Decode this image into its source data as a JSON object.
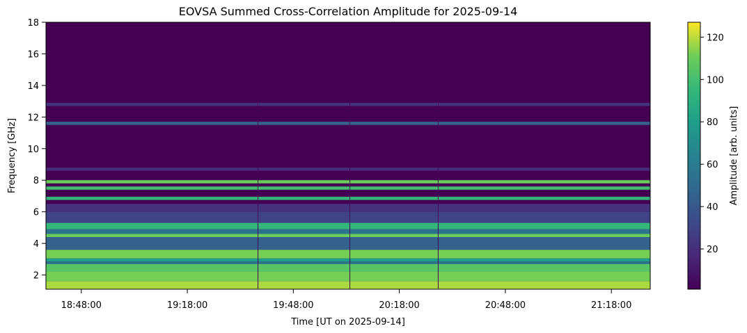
{
  "chart_data": {
    "type": "heatmap",
    "title": "EOVSA Summed Cross-Correlation Amplitude for 2025-09-14",
    "xlabel": "Time [UT on 2025-09-14]",
    "ylabel": "Frequency [GHz]",
    "colorbar_label": "Amplitude [arb. units]",
    "colormap": "viridis",
    "x_range": [
      "18:38:00",
      "21:29:00"
    ],
    "xticks": [
      "18:48:00",
      "19:18:00",
      "19:48:00",
      "20:18:00",
      "20:48:00",
      "21:18:00"
    ],
    "ylim": [
      1.1,
      18.0
    ],
    "yticks": [
      2,
      4,
      6,
      8,
      10,
      12,
      14,
      16,
      18
    ],
    "clim": [
      1,
      127
    ],
    "cbar_ticks": [
      20,
      40,
      60,
      80,
      100,
      120
    ],
    "background_level": 5,
    "bands": [
      {
        "f_low": 1.1,
        "f_high": 1.6,
        "level": 118
      },
      {
        "f_low": 1.6,
        "f_high": 2.2,
        "level": 112
      },
      {
        "f_low": 2.2,
        "f_high": 2.7,
        "level": 105
      },
      {
        "f_low": 2.7,
        "f_high": 2.85,
        "level": 55
      },
      {
        "f_low": 2.85,
        "f_high": 3.05,
        "level": 80
      },
      {
        "f_low": 3.05,
        "f_high": 3.6,
        "level": 112
      },
      {
        "f_low": 3.6,
        "f_high": 4.4,
        "level": 45
      },
      {
        "f_low": 4.4,
        "f_high": 4.6,
        "level": 110
      },
      {
        "f_low": 4.6,
        "f_high": 4.9,
        "level": 55
      },
      {
        "f_low": 4.9,
        "f_high": 5.3,
        "level": 95
      },
      {
        "f_low": 5.3,
        "f_high": 6.0,
        "level": 30
      },
      {
        "f_low": 6.0,
        "f_high": 6.5,
        "level": 22
      },
      {
        "f_low": 6.75,
        "f_high": 6.95,
        "level": 95
      },
      {
        "f_low": 7.4,
        "f_high": 7.6,
        "level": 100
      },
      {
        "f_low": 7.8,
        "f_high": 8.0,
        "level": 110
      },
      {
        "f_low": 8.6,
        "f_high": 8.8,
        "level": 18
      },
      {
        "f_low": 12.7,
        "f_high": 12.9,
        "level": 22
      },
      {
        "f_low": 11.5,
        "f_high": 11.7,
        "level": 45
      }
    ],
    "vertical_lines": [
      "19:38:00",
      "20:04:00",
      "20:29:00"
    ]
  }
}
